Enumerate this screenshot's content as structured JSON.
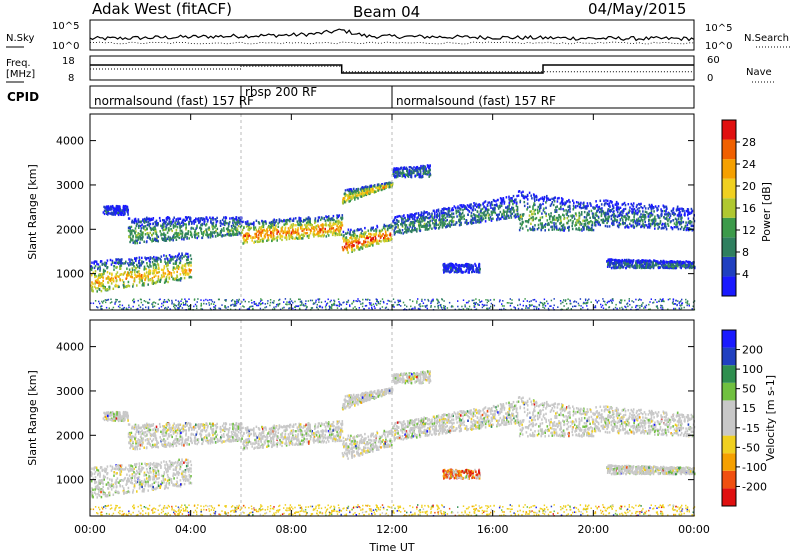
{
  "header": {
    "radar": "Adak West (fitACF)",
    "beam": "Beam 04",
    "date": "04/May/2015"
  },
  "colors": {
    "power": [
      "#1a1aff",
      "#2040c0",
      "#2f7f5f",
      "#3c9a4a",
      "#b0c830",
      "#f0d020",
      "#f5a000",
      "#f06000",
      "#e01010"
    ],
    "velocity": [
      "#e01010",
      "#f05010",
      "#f5a000",
      "#f0d020",
      "#c8c8c8",
      "#c8c8c8",
      "#70c040",
      "#2f8f4f",
      "#2040c0",
      "#1a1aff"
    ]
  },
  "chart_data": [
    {
      "type": "line",
      "panel": "noise",
      "left_label": "N.Sky",
      "right_label": "N.Search",
      "left_ticks": [
        "10^5",
        "10^0"
      ],
      "right_ticks": [
        "10^5",
        "10^0"
      ],
      "x_range_hours": [
        0,
        24
      ],
      "sky_level": [
        0.35,
        0.36,
        0.38,
        0.4,
        0.42,
        0.44,
        0.46,
        0.48,
        0.5,
        0.55,
        0.7,
        0.45,
        0.44,
        0.43,
        0.42,
        0.41,
        0.4,
        0.39,
        0.38,
        0.37,
        0.36,
        0.36,
        0.35,
        0.35,
        0.35
      ]
    },
    {
      "type": "line",
      "panel": "frequency",
      "left_label": "Freq.",
      "left_unit": "[MHz]",
      "right_label": "Nave",
      "left_ticks": [
        "18",
        "8"
      ],
      "right_ticks": [
        "60",
        "0"
      ],
      "freq_segments": [
        {
          "start": 0,
          "end": 10,
          "value": 15
        },
        {
          "start": 10,
          "end": 18,
          "value": 11
        },
        {
          "start": 18,
          "end": 24,
          "value": 15
        }
      ],
      "nave_segments": [
        {
          "start": 0,
          "end": 6,
          "value": 30
        },
        {
          "start": 6,
          "end": 10,
          "value": 38
        },
        {
          "start": 10,
          "end": 24,
          "value": 22
        }
      ]
    },
    {
      "type": "table",
      "panel": "cpid",
      "label": "CPID",
      "segments": [
        {
          "start": 0,
          "end": 6,
          "name": "normalsound (fast) 157 RF"
        },
        {
          "start": 6,
          "end": 12,
          "name": "rbsp 200 RF"
        },
        {
          "start": 12,
          "end": 24,
          "name": "normalsound (fast) 157 RF"
        }
      ]
    },
    {
      "type": "heatmap",
      "panel": "power",
      "ylabel": "Slant Range [km]",
      "yticks": [
        1000,
        2000,
        3000,
        4000
      ],
      "ylim": [
        180,
        4600
      ],
      "x_range_hours": [
        0,
        24
      ],
      "colorbar_label": "Power [dB]",
      "colorbar_ticks": [
        "28",
        "24",
        "20",
        "16",
        "12",
        "8",
        "4"
      ],
      "scatter_bands": [
        {
          "t0": 0,
          "t1": 4,
          "r0": 600,
          "r1": 1300,
          "r0e": 900,
          "r1e": 1500,
          "level": 0.5
        },
        {
          "t0": 0.5,
          "t1": 1.5,
          "r0": 2350,
          "r1": 2550,
          "r0e": 2350,
          "r1e": 2550,
          "level": 0.1
        },
        {
          "t0": 1.5,
          "t1": 6,
          "r0": 1700,
          "r1": 2300,
          "r0e": 1900,
          "r1e": 2300,
          "level": 0.3
        },
        {
          "t0": 6,
          "t1": 10,
          "r0": 1700,
          "r1": 2200,
          "r0e": 1900,
          "r1e": 2350,
          "level": 0.6
        },
        {
          "t0": 10,
          "t1": 12,
          "r0": 1450,
          "r1": 2000,
          "r0e": 1800,
          "r1e": 2150,
          "level": 0.65
        },
        {
          "t0": 10,
          "t1": 12,
          "r0": 2600,
          "r1": 2900,
          "r0e": 3000,
          "r1e": 3100,
          "level": 0.5
        },
        {
          "t0": 12,
          "t1": 13.5,
          "r0": 3200,
          "r1": 3400,
          "r0e": 3200,
          "r1e": 3500,
          "level": 0.2
        },
        {
          "t0": 12,
          "t1": 17,
          "r0": 1900,
          "r1": 2300,
          "r0e": 2300,
          "r1e": 2800,
          "level": 0.25
        },
        {
          "t0": 14,
          "t1": 15.5,
          "r0": 1050,
          "r1": 1250,
          "r0e": 1050,
          "r1e": 1250,
          "level": 0.1
        },
        {
          "t0": 17,
          "t1": 20,
          "r0": 2000,
          "r1": 2900,
          "r0e": 2000,
          "r1e": 2600,
          "level": 0.3
        },
        {
          "t0": 20,
          "t1": 24,
          "r0": 2100,
          "r1": 2700,
          "r0e": 2000,
          "r1e": 2500,
          "level": 0.2
        },
        {
          "t0": 20.5,
          "t1": 24,
          "r0": 1150,
          "r1": 1350,
          "r0e": 1150,
          "r1e": 1300,
          "level": 0.2
        }
      ]
    },
    {
      "type": "heatmap",
      "panel": "velocity",
      "ylabel": "Slant Range [km]",
      "yticks": [
        1000,
        2000,
        3000,
        4000
      ],
      "ylim": [
        180,
        4600
      ],
      "x_range_hours": [
        0,
        24
      ],
      "xticks": [
        "00:00",
        "04:00",
        "08:00",
        "12:00",
        "16:00",
        "20:00",
        "00:00"
      ],
      "xlabel": "Time UT",
      "colorbar_label": "Velocity [m s-1]",
      "colorbar_ticks": [
        "200",
        "100",
        "50",
        "15",
        "-15",
        "-50",
        "-100",
        "-200"
      ]
    }
  ]
}
